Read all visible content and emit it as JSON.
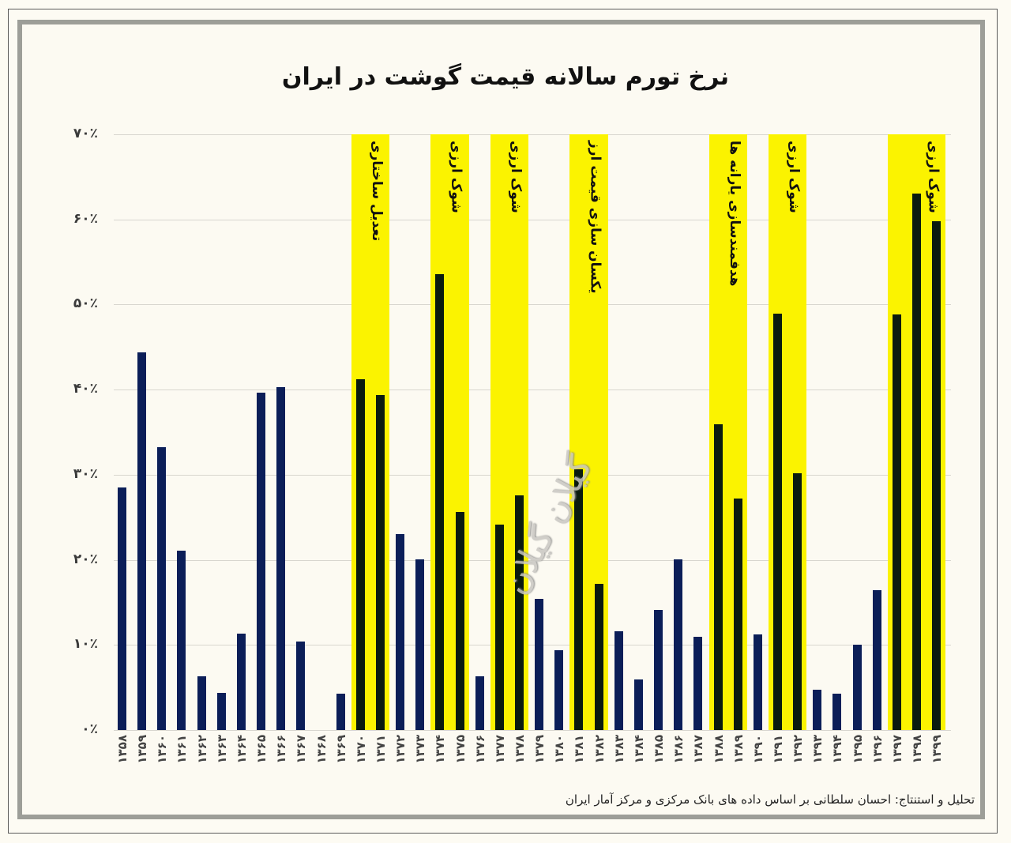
{
  "title": "نرخ تورم سالانه قیمت گوشت در ایران",
  "credit": "تحلیل و استنتاج: احسان سلطانی بر اساس داده های بانک مرکزی و مرکز آمار ایران",
  "watermark": "گیلان گیلان",
  "colors": {
    "background": "#fcfaf2",
    "bar_normal": "#0b1e58",
    "bar_highlight": "#0a1b0f",
    "band": "#fbf300",
    "grid": "#d8d6cf"
  },
  "y_ticks": [
    "۰٪",
    "۱۰٪",
    "۲۰٪",
    "۳۰٪",
    "۴۰٪",
    "۵۰٪",
    "۶۰٪",
    "۷۰٪"
  ],
  "x_labels": [
    "۱۳۵۸",
    "۱۳۵۹",
    "۱۳۶۰",
    "۱۳۶۱",
    "۱۳۶۲",
    "۱۳۶۳",
    "۱۳۶۴",
    "۱۳۶۵",
    "۱۳۶۶",
    "۱۳۶۷",
    "۱۳۶۸",
    "۱۳۶۹",
    "۱۳۷۰",
    "۱۳۷۱",
    "۱۳۷۲",
    "۱۳۷۳",
    "۱۳۷۴",
    "۱۳۷۵",
    "۱۳۷۶",
    "۱۳۷۷",
    "۱۳۷۸",
    "۱۳۷۹",
    "۱۳۸۰",
    "۱۳۸۱",
    "۱۳۸۲",
    "۱۳۸۳",
    "۱۳۸۴",
    "۱۳۸۵",
    "۱۳۸۶",
    "۱۳۸۷",
    "۱۳۸۸",
    "۱۳۸۹",
    "۱۳۹۰",
    "۱۳۹۱",
    "۱۳۹۲",
    "۱۳۹۳",
    "۱۳۹۴",
    "۱۳۹۵",
    "۱۳۹۶",
    "۱۳۹۷",
    "۱۳۹۸",
    "۱۳۹۹"
  ],
  "bands": [
    {
      "start": 12,
      "end": 13,
      "label": "تعدیل ساختاری"
    },
    {
      "start": 16,
      "end": 17,
      "label": "شوک ارزی"
    },
    {
      "start": 19,
      "end": 20,
      "label": "شوک ارزی"
    },
    {
      "start": 23,
      "end": 24,
      "label": "یکسان سازی قیمت ارز"
    },
    {
      "start": 30,
      "end": 31,
      "label": "هدفمندسازی یارانه ها"
    },
    {
      "start": 33,
      "end": 34,
      "label": "شوک ارزی"
    },
    {
      "start": 39,
      "end": 41,
      "label": "شوک ارزی"
    }
  ],
  "chart_data": {
    "type": "bar",
    "title": "نرخ تورم سالانه قیمت گوشت در ایران",
    "xlabel": "",
    "ylabel": "",
    "ylim": [
      0,
      70
    ],
    "grid": true,
    "legend": null,
    "categories": [
      1358,
      1359,
      1360,
      1361,
      1362,
      1363,
      1364,
      1365,
      1366,
      1367,
      1368,
      1369,
      1370,
      1371,
      1372,
      1373,
      1374,
      1375,
      1376,
      1377,
      1378,
      1379,
      1380,
      1381,
      1382,
      1383,
      1384,
      1385,
      1386,
      1387,
      1388,
      1389,
      1390,
      1391,
      1392,
      1393,
      1394,
      1395,
      1396,
      1397,
      1398,
      1399
    ],
    "values": [
      28.5,
      44.4,
      33.2,
      21.1,
      6.3,
      4.4,
      11.3,
      39.6,
      40.3,
      10.4,
      0.0,
      4.3,
      41.2,
      39.4,
      23.0,
      20.1,
      53.6,
      25.6,
      6.3,
      24.1,
      27.6,
      15.4,
      9.4,
      30.6,
      17.2,
      11.6,
      5.9,
      14.1,
      20.1,
      11.0,
      35.9,
      27.2,
      11.2,
      48.9,
      30.2,
      4.7,
      4.3,
      10.0,
      16.4,
      48.8,
      63.0,
      59.8
    ],
    "unit": "%",
    "annotations": [
      {
        "years": "1370-1371",
        "text": "تعدیل ساختاری"
      },
      {
        "years": "1374-1375",
        "text": "شوک ارزی"
      },
      {
        "years": "1377-1378",
        "text": "شوک ارزی"
      },
      {
        "years": "1381-1382",
        "text": "یکسان سازی قیمت ارز"
      },
      {
        "years": "1388-1389",
        "text": "هدفمندسازی یارانه ها"
      },
      {
        "years": "1391-1392",
        "text": "شوک ارزی"
      },
      {
        "years": "1397-1399",
        "text": "شوک ارزی"
      }
    ]
  }
}
